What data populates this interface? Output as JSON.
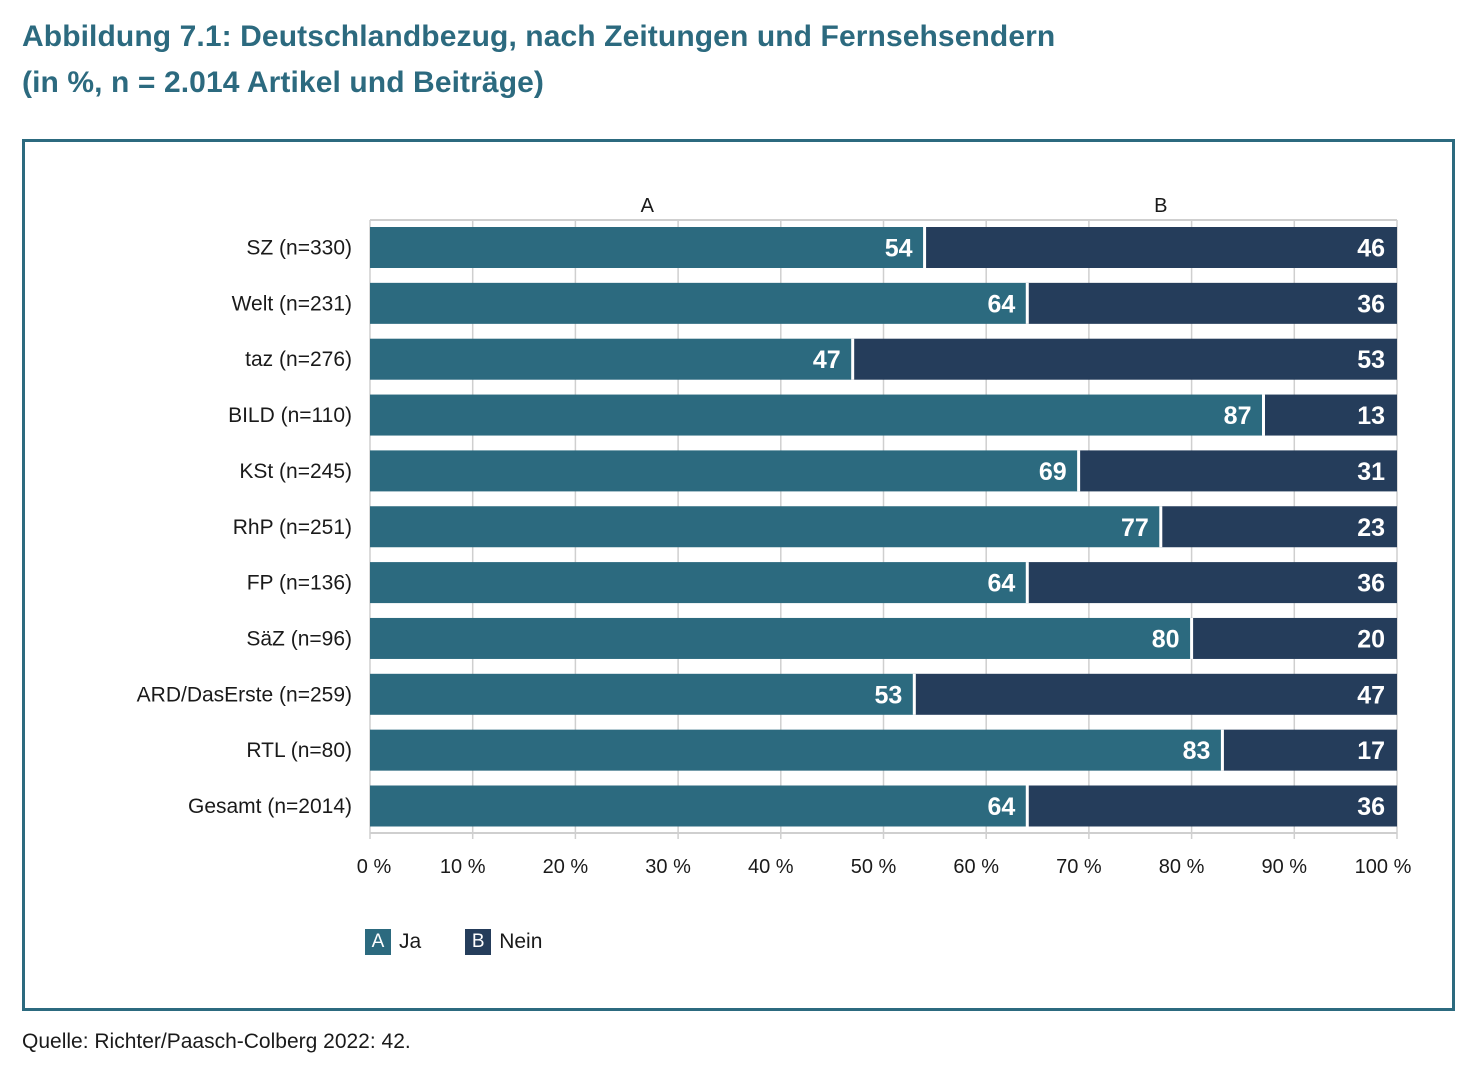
{
  "title_line1": "Abbildung 7.1: Deutschlandbezug, nach Zeitungen und Fernsehsendern",
  "title_line2": "(in %, n = 2.014 Artikel und Beiträge)",
  "source": "Quelle: Richter/Paasch-Colberg 2022: 42.",
  "colors": {
    "ja": "#2c6a7f",
    "nein": "#253d5b",
    "frame": "#2c6a7f"
  },
  "chart_data": {
    "type": "bar",
    "orientation": "horizontal",
    "stacked": true,
    "categories": [
      "SZ (n=330)",
      "Welt (n=231)",
      "taz (n=276)",
      "BILD (n=110)",
      "KSt (n=245)",
      "RhP (n=251)",
      "FP (n=136)",
      "SäZ (n=96)",
      "ARD/DasErste (n=259)",
      "RTL (n=80)",
      "Gesamt (n=2014)"
    ],
    "series": [
      {
        "key": "A",
        "name": "Ja",
        "values": [
          54,
          64,
          47,
          87,
          69,
          77,
          64,
          80,
          53,
          83,
          64
        ]
      },
      {
        "key": "B",
        "name": "Nein",
        "values": [
          46,
          36,
          53,
          13,
          31,
          23,
          36,
          20,
          47,
          17,
          36
        ]
      }
    ],
    "xlim": [
      0,
      100
    ],
    "x_ticks": [
      "0 %",
      "10 %",
      "20 %",
      "30 %",
      "40 %",
      "50 %",
      "60 %",
      "70 %",
      "80 %",
      "90 %",
      "100 %"
    ],
    "grid": true,
    "legend": "bottom-left"
  }
}
